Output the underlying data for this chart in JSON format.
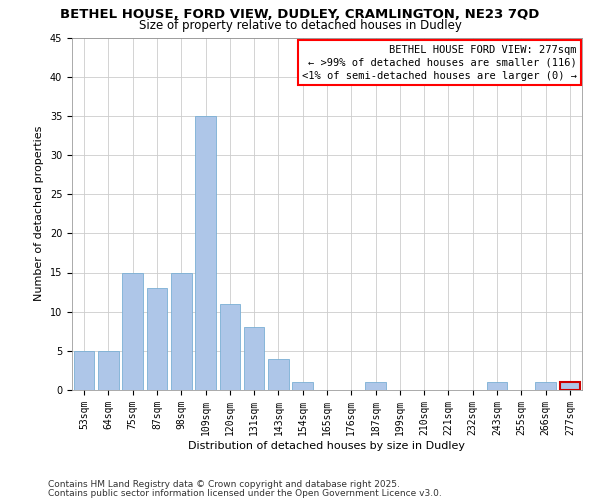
{
  "title": "BETHEL HOUSE, FORD VIEW, DUDLEY, CRAMLINGTON, NE23 7QD",
  "subtitle": "Size of property relative to detached houses in Dudley",
  "xlabel": "Distribution of detached houses by size in Dudley",
  "ylabel": "Number of detached properties",
  "bar_color": "#aec6e8",
  "bar_edge_color": "#7aafd4",
  "categories": [
    "53sqm",
    "64sqm",
    "75sqm",
    "87sqm",
    "98sqm",
    "109sqm",
    "120sqm",
    "131sqm",
    "143sqm",
    "154sqm",
    "165sqm",
    "176sqm",
    "187sqm",
    "199sqm",
    "210sqm",
    "221sqm",
    "232sqm",
    "243sqm",
    "255sqm",
    "266sqm",
    "277sqm"
  ],
  "values": [
    5,
    5,
    15,
    13,
    15,
    35,
    11,
    8,
    4,
    1,
    0,
    0,
    1,
    0,
    0,
    0,
    0,
    1,
    0,
    1,
    1
  ],
  "ylim": [
    0,
    45
  ],
  "yticks": [
    0,
    5,
    10,
    15,
    20,
    25,
    30,
    35,
    40,
    45
  ],
  "legend_title": "BETHEL HOUSE FORD VIEW: 277sqm",
  "legend_line1": "← >99% of detached houses are smaller (116)",
  "legend_line2": "<1% of semi-detached houses are larger (0) →",
  "highlight_bar_index": 20,
  "footer1": "Contains HM Land Registry data © Crown copyright and database right 2025.",
  "footer2": "Contains public sector information licensed under the Open Government Licence v3.0.",
  "background_color": "#ffffff",
  "grid_color": "#cccccc",
  "title_fontsize": 9.5,
  "subtitle_fontsize": 8.5,
  "axis_label_fontsize": 8,
  "tick_fontsize": 7,
  "footer_fontsize": 6.5,
  "legend_fontsize": 7.5
}
